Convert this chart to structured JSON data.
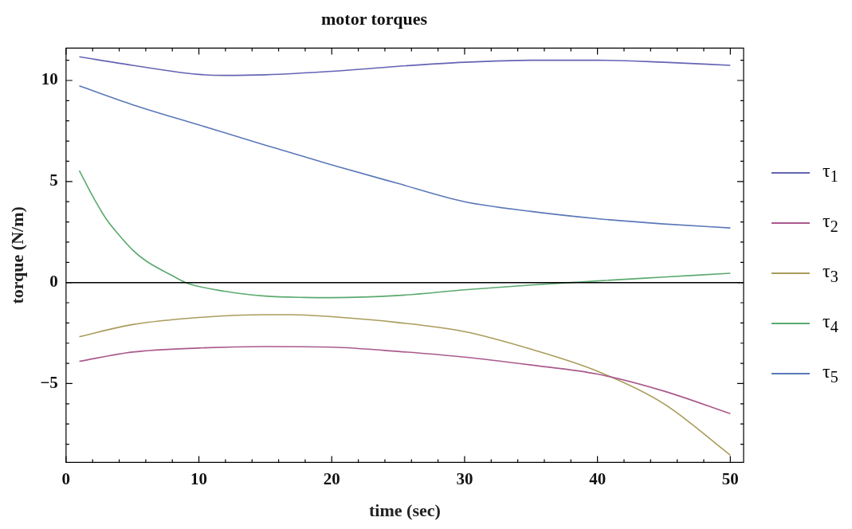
{
  "chart_data": {
    "type": "line",
    "title": "motor torques",
    "xlabel": "time (sec)",
    "ylabel": "torque (N/m)",
    "xlim": [
      0,
      51
    ],
    "ylim": [
      -8.9,
      11.6
    ],
    "xticks": [
      0,
      {
        "value": 2,
        "label": null
      },
      {
        "value": 4,
        "label": null
      },
      {
        "value": 6,
        "label": null
      },
      {
        "value": 8,
        "label": null
      },
      10,
      {
        "value": 12,
        "label": null
      },
      {
        "value": 14,
        "label": null
      },
      {
        "value": 16,
        "label": null
      },
      {
        "value": 18,
        "label": null
      },
      20,
      {
        "value": 22,
        "label": null
      },
      {
        "value": 24,
        "label": null
      },
      {
        "value": 26,
        "label": null
      },
      {
        "value": 28,
        "label": null
      },
      30,
      {
        "value": 32,
        "label": null
      },
      {
        "value": 34,
        "label": null
      },
      {
        "value": 36,
        "label": null
      },
      {
        "value": 38,
        "label": null
      },
      40,
      {
        "value": 42,
        "label": null
      },
      {
        "value": 44,
        "label": null
      },
      {
        "value": 46,
        "label": null
      },
      {
        "value": 48,
        "label": null
      },
      50
    ],
    "yticks": [
      {
        "value": -8,
        "label": null
      },
      {
        "value": -7,
        "label": null
      },
      {
        "value": -6,
        "label": null
      },
      {
        "value": -5,
        "label": "−5"
      },
      {
        "value": -4,
        "label": null
      },
      {
        "value": -3,
        "label": null
      },
      {
        "value": -2,
        "label": null
      },
      {
        "value": -1,
        "label": null
      },
      0,
      {
        "value": 1,
        "label": null
      },
      {
        "value": 2,
        "label": null
      },
      {
        "value": 3,
        "label": null
      },
      {
        "value": 4,
        "label": null
      },
      5,
      {
        "value": 6,
        "label": null
      },
      {
        "value": 7,
        "label": null
      },
      {
        "value": 8,
        "label": null
      },
      {
        "value": 9,
        "label": null
      },
      10,
      {
        "value": 11,
        "label": null
      }
    ],
    "grid": false,
    "legend": "right",
    "marker": "none",
    "line_style": "solid",
    "ref_lines": [
      {
        "axis": "y",
        "value": 0,
        "color": "#000000"
      }
    ],
    "series": [
      {
        "name": "τ$_{1}$",
        "color": "#6464b4",
        "x": [
          1,
          5,
          10,
          12,
          15,
          20,
          25,
          30,
          35,
          40,
          45,
          50
        ],
        "values": [
          11.17,
          10.75,
          10.3,
          10.25,
          10.28,
          10.45,
          10.7,
          10.9,
          11.0,
          11.0,
          10.9,
          10.75
        ]
      },
      {
        "name": "τ$_{2}$",
        "color": "#aa5a8c",
        "x": [
          1,
          5,
          10,
          15,
          20,
          25,
          30,
          35,
          40,
          45,
          50
        ],
        "values": [
          -3.9,
          -3.44,
          -3.24,
          -3.17,
          -3.2,
          -3.41,
          -3.69,
          -4.08,
          -4.53,
          -5.37,
          -6.49
        ]
      },
      {
        "name": "τ$_{3}$",
        "color": "#aa9c5a",
        "x": [
          1,
          5,
          10,
          15,
          17,
          20,
          25,
          30,
          35,
          40,
          45,
          50
        ],
        "values": [
          -2.68,
          -2.08,
          -1.73,
          -1.59,
          -1.59,
          -1.69,
          -1.98,
          -2.43,
          -3.3,
          -4.39,
          -6.0,
          -8.54
        ]
      },
      {
        "name": "τ$_{4}$",
        "color": "#5aaa6e",
        "x": [
          1,
          2,
          3,
          4,
          5,
          6,
          8,
          9,
          12,
          15,
          18,
          20,
          25,
          30,
          35,
          38,
          40,
          45,
          50
        ],
        "values": [
          5.54,
          4.28,
          3.17,
          2.34,
          1.62,
          1.08,
          0.34,
          0,
          -0.44,
          -0.67,
          -0.74,
          -0.75,
          -0.64,
          -0.36,
          -0.12,
          0,
          0.08,
          0.27,
          0.46
        ]
      },
      {
        "name": "τ$_{5}$",
        "color": "#5a78b8",
        "x": [
          1,
          5,
          10,
          15,
          20,
          25,
          30,
          35,
          40,
          45,
          50
        ],
        "values": [
          9.73,
          8.8,
          7.8,
          6.8,
          5.82,
          4.9,
          4.0,
          3.52,
          3.16,
          2.9,
          2.7
        ]
      }
    ]
  }
}
